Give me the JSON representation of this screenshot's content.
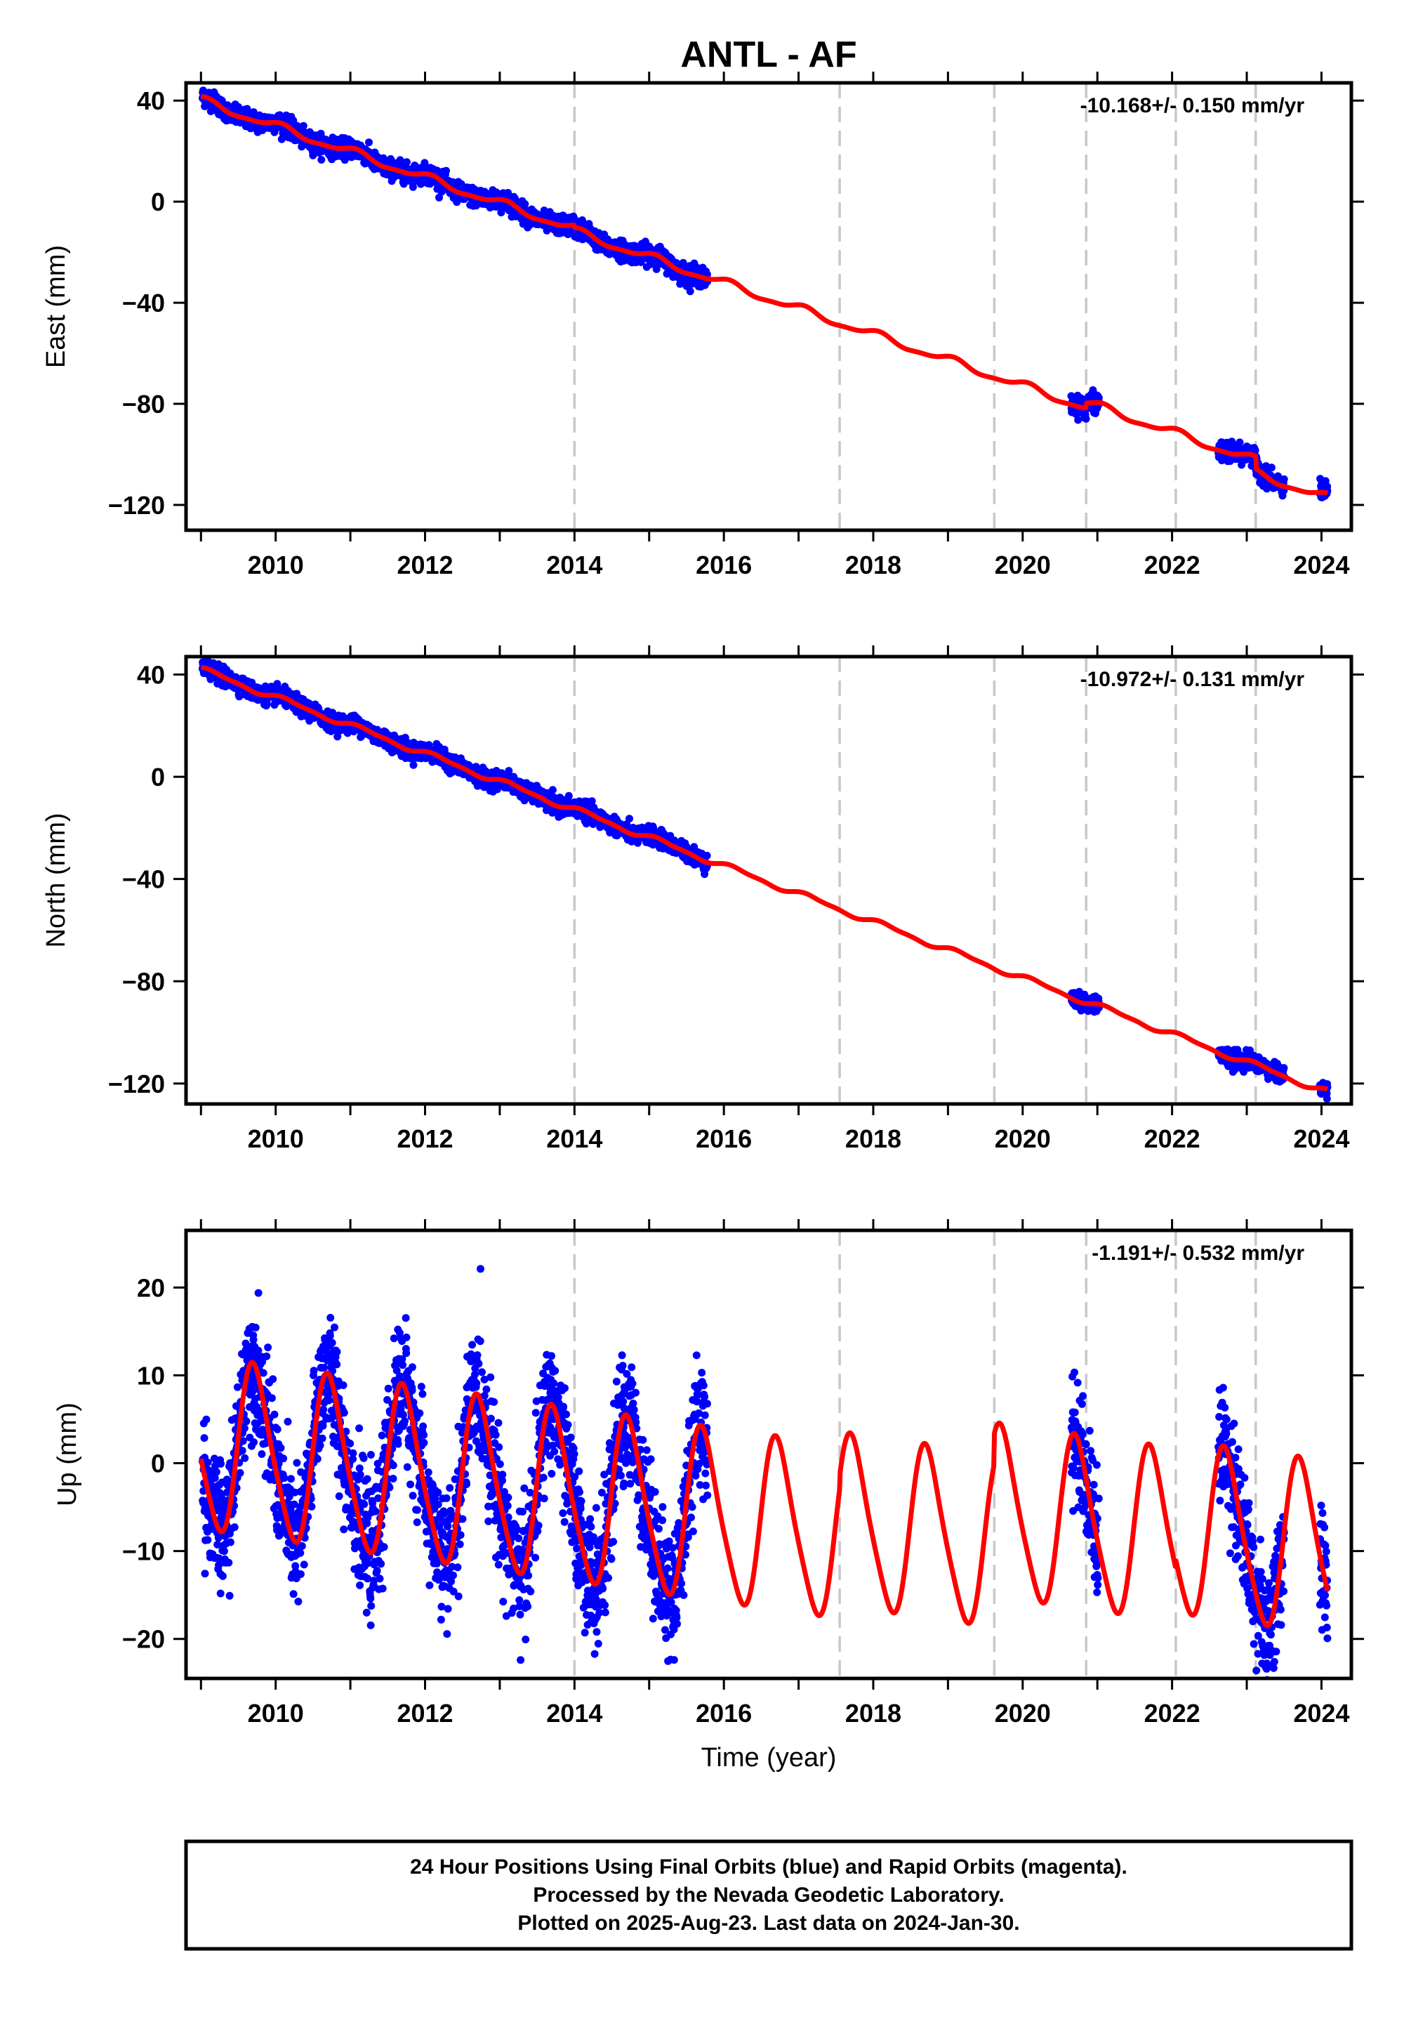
{
  "colors": {
    "data_points": "#0000ff",
    "model_curve": "#ff0000",
    "event_lines": "#c8c8c8",
    "frame": "#000000"
  },
  "chart_data": {
    "title": "ANTL - AF",
    "xlabel": "Time (year)",
    "xlim": [
      2008.8,
      2024.4
    ],
    "x_ticks": [
      2010,
      2012,
      2014,
      2016,
      2018,
      2020,
      2022,
      2024
    ],
    "x_tick_labels": [
      "2010",
      "2012",
      "2014",
      "2016",
      "2018",
      "2020",
      "2022",
      "2024"
    ],
    "event_lines": [
      2014.0,
      2017.55,
      2019.62,
      2020.85,
      2022.05,
      2023.12
    ],
    "data_segments": [
      [
        2009.02,
        2015.78
      ],
      [
        2020.65,
        2021.02
      ],
      [
        2022.62,
        2023.5
      ],
      [
        2023.98,
        2024.08
      ]
    ],
    "last_data": 2024.08,
    "panels": [
      {
        "type": "scatter",
        "component": "east",
        "ylabel": "East (mm)",
        "ylim": [
          -130,
          47
        ],
        "y_ticks": [
          40,
          0,
          -40,
          -80,
          -120
        ],
        "y_tick_labels": [
          "40",
          "0",
          "−40",
          "−80",
          "−120"
        ],
        "rate_label": "-10.168+/- 0.150 mm/yr",
        "series": [
          {
            "kind": "points",
            "color": "blue"
          },
          {
            "kind": "line",
            "color": "red"
          }
        ],
        "model": {
          "t0": 2009.0,
          "offset": 40.0,
          "rate": -10.168,
          "amp1": 1.5,
          "phase1": 1.2,
          "amp2": 0.5,
          "phase2": 0.3,
          "steps": [
            {
              "t": 2014.0,
              "d": -1.0
            },
            {
              "t": 2020.85,
              "d": 2.0
            },
            {
              "t": 2023.12,
              "d": -5.0
            }
          ],
          "noise": 1.8
        }
      },
      {
        "type": "scatter",
        "component": "north",
        "ylabel": "North (mm)",
        "ylim": [
          -128,
          47
        ],
        "y_ticks": [
          40,
          0,
          -40,
          -80,
          -120
        ],
        "y_tick_labels": [
          "40",
          "0",
          "−40",
          "−80",
          "−120"
        ],
        "rate_label": "-10.972+/- 0.131 mm/yr",
        "series": [
          {
            "kind": "points",
            "color": "blue"
          },
          {
            "kind": "line",
            "color": "red"
          }
        ],
        "model": {
          "t0": 2009.0,
          "offset": 42.0,
          "rate": -10.972,
          "amp1": 1.0,
          "phase1": 0.5,
          "amp2": 0.4,
          "phase2": 1.0,
          "steps": [],
          "noise": 1.6
        }
      },
      {
        "type": "scatter",
        "component": "up",
        "ylabel": "Up (mm)",
        "ylim": [
          -24.5,
          26.5
        ],
        "y_ticks": [
          20,
          10,
          0,
          -10,
          -20
        ],
        "y_tick_labels": [
          "20",
          "10",
          "0",
          "−10",
          "−20"
        ],
        "rate_label": "-1.191+/- 0.532 mm/yr",
        "series": [
          {
            "kind": "points",
            "color": "blue"
          },
          {
            "kind": "line",
            "color": "red"
          }
        ],
        "model": {
          "t0": 2009.0,
          "offset": 2.0,
          "rate": -1.191,
          "amp1": 9.5,
          "phase1": 3.3,
          "amp2": 1.5,
          "phase2": 0.0,
          "steps": [
            {
              "t": 2017.55,
              "d": 1.5
            },
            {
              "t": 2019.62,
              "d": 3.5
            },
            {
              "t": 2022.05,
              "d": 1.0
            }
          ],
          "noise": 3.5
        }
      }
    ]
  },
  "footer": {
    "line1": "24 Hour Positions Using Final Orbits (blue) and Rapid Orbits (magenta).",
    "line2": "Processed by the Nevada Geodetic Laboratory.",
    "line3": "Plotted on 2025-Aug-23. Last data on 2024-Jan-30."
  }
}
